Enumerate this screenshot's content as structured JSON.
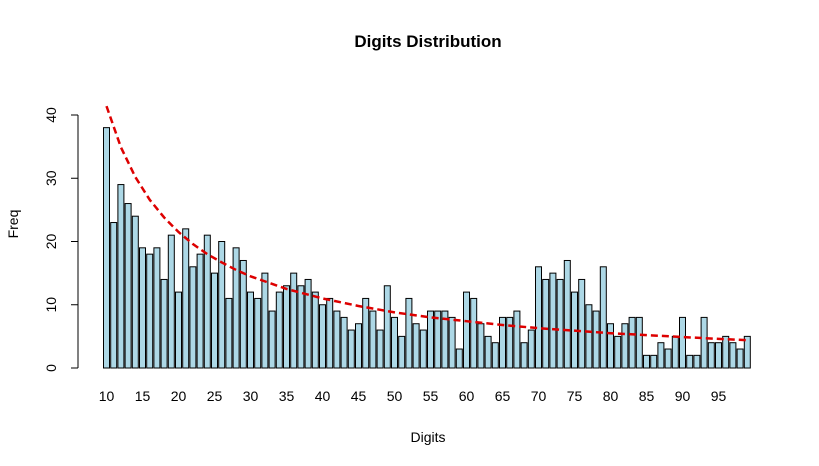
{
  "chart_data": {
    "type": "bar",
    "title": "Digits Distribution",
    "xlabel": "Digits",
    "ylabel": "Freq",
    "x": [
      10,
      11,
      12,
      13,
      14,
      15,
      16,
      17,
      18,
      19,
      20,
      21,
      22,
      23,
      24,
      25,
      26,
      27,
      28,
      29,
      30,
      31,
      32,
      33,
      34,
      35,
      36,
      37,
      38,
      39,
      40,
      41,
      42,
      43,
      44,
      45,
      46,
      47,
      48,
      49,
      50,
      51,
      52,
      53,
      54,
      55,
      56,
      57,
      58,
      59,
      60,
      61,
      62,
      63,
      64,
      65,
      66,
      67,
      68,
      69,
      70,
      71,
      72,
      73,
      74,
      75,
      76,
      77,
      78,
      79,
      80,
      81,
      82,
      83,
      84,
      85,
      86,
      87,
      88,
      89,
      90,
      91,
      92,
      93,
      94,
      95,
      96,
      97,
      98,
      99
    ],
    "values": [
      38,
      23,
      29,
      26,
      24,
      19,
      18,
      19,
      14,
      21,
      12,
      22,
      16,
      18,
      21,
      15,
      20,
      11,
      19,
      17,
      12,
      11,
      15,
      9,
      12,
      13,
      15,
      13,
      14,
      12,
      10,
      11,
      9,
      8,
      6,
      7,
      11,
      9,
      6,
      13,
      8,
      5,
      11,
      7,
      6,
      9,
      9,
      9,
      8,
      3,
      12,
      11,
      7,
      5,
      4,
      8,
      8,
      9,
      4,
      6,
      16,
      14,
      15,
      14,
      17,
      12,
      14,
      10,
      9,
      16,
      7,
      5,
      7,
      8,
      8,
      2,
      2,
      4,
      3,
      5,
      8,
      2,
      2,
      8,
      4,
      4,
      5,
      4,
      3,
      5
    ],
    "x_tick_labels": [
      "10",
      "15",
      "20",
      "25",
      "30",
      "35",
      "40",
      "45",
      "50",
      "55",
      "60",
      "65",
      "70",
      "75",
      "80",
      "85",
      "90",
      "95"
    ],
    "y_ticks": [
      0,
      10,
      20,
      30,
      40
    ],
    "y_tick_labels": [
      "0",
      "10",
      "20",
      "30",
      "40"
    ],
    "ylim": [
      0,
      42
    ],
    "bar_color": "#add8e6",
    "bar_border_color": "#000000",
    "overlay": {
      "type": "curve",
      "style": "dashed",
      "color": "#dd0000",
      "description_values": "Benford-style expected frequency",
      "x": [
        10,
        12,
        14,
        16,
        18,
        20,
        22,
        24,
        26,
        28,
        30,
        35,
        40,
        45,
        50,
        55,
        60,
        65,
        70,
        75,
        80,
        85,
        90,
        95,
        99
      ],
      "y": [
        41.4,
        34.9,
        30.2,
        26.6,
        23.8,
        21.5,
        19.6,
        18.0,
        16.7,
        15.5,
        14.5,
        12.5,
        11.0,
        9.8,
        8.8,
        8.0,
        7.4,
        6.8,
        6.3,
        5.9,
        5.5,
        5.2,
        4.9,
        4.6,
        4.4
      ]
    },
    "grid": false,
    "legend": "none"
  }
}
